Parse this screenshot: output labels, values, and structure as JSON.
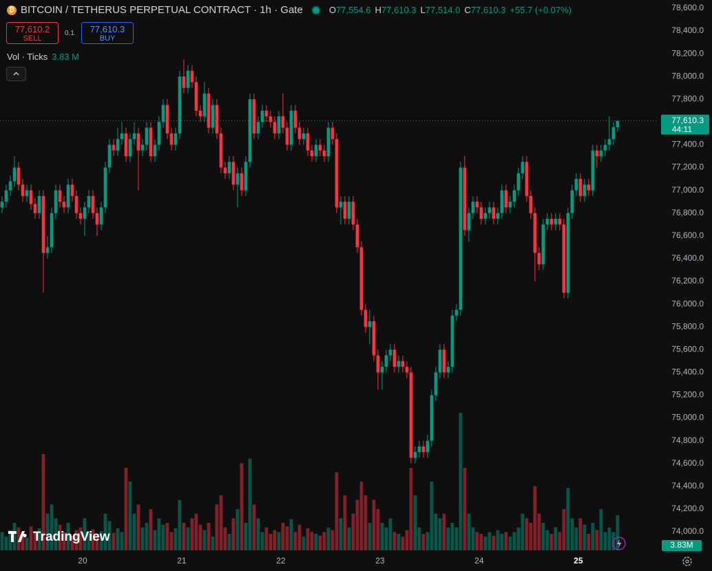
{
  "chart_data": {
    "type": "candlestick",
    "title": "BITCOIN / TETHERUS PERPETUAL CONTRACT · 1h · Gate",
    "legend_ohlc": [
      {
        "name": "O",
        "value": 77554.6,
        "label": "77,554.6"
      },
      {
        "name": "H",
        "value": 77610.3,
        "label": "77,610.3"
      },
      {
        "name": "L",
        "value": 77514.0,
        "label": "77,514.0"
      },
      {
        "name": "C",
        "value": 77610.3,
        "label": "77,610.3"
      }
    ],
    "change": "+55.7 (+0.07%)",
    "order_panel": {
      "sell_price": {
        "value": 77610.2,
        "label": "77,610.2"
      },
      "sell": "SELL",
      "spread": 0.1,
      "buy_price": {
        "value": 77610.3,
        "label": "77,610.3"
      },
      "buy": "BUY"
    },
    "volume_legend": {
      "name": "Vol · Ticks",
      "label": "3.83 M"
    },
    "up_color": "#089981",
    "down_color": "#f23645",
    "open": [
      76850,
      76900,
      77000,
      77080,
      77200,
      77050,
      76950,
      77000,
      76880,
      76800,
      76950,
      76450,
      76500,
      76800,
      77000,
      76900,
      76850,
      77050,
      76950,
      76800,
      76750,
      76850,
      76950,
      76800,
      76700,
      76850,
      77200,
      77400,
      77350,
      77450,
      77500,
      77300,
      77450,
      77500,
      77350,
      77400,
      77550,
      77300,
      77400,
      77600,
      77750,
      77500,
      77400,
      77500,
      78000,
      77900,
      78050,
      77950,
      77700,
      77650,
      77850,
      77550,
      77750,
      77500,
      77200,
      77150,
      77250,
      77050,
      77150,
      77000,
      77250,
      77800,
      77500,
      77600,
      77700,
      77650,
      77600,
      77500,
      77650,
      77550,
      77400,
      77700,
      77550,
      77450,
      77500,
      77350,
      77300,
      77400,
      77350,
      77300,
      77550,
      77450,
      76850,
      76900,
      76750,
      76900,
      76700,
      76500,
      75950,
      75800,
      75850,
      75550,
      75400,
      75450,
      75550,
      75600,
      75450,
      75500,
      75450,
      75400,
      74650,
      74700,
      74750,
      74700,
      74800,
      75200,
      75400,
      75600,
      75400,
      75450,
      75900,
      75950,
      77200,
      76650,
      76800,
      76900,
      76850,
      76750,
      76800,
      76850,
      76750,
      76800,
      77000,
      76850,
      76900,
      77000,
      77150,
      77250,
      76950,
      76800,
      76450,
      76350,
      76700,
      76750,
      76700,
      76750,
      76700,
      76100,
      76800,
      77000,
      77100,
      76950,
      77050,
      77000,
      77350,
      77300,
      77350,
      77400,
      77450,
      77554.6
    ],
    "high": [
      76950,
      77050,
      77130,
      77300,
      77250,
      77100,
      77050,
      77050,
      76930,
      77000,
      77000,
      76600,
      76850,
      77050,
      77050,
      76950,
      77100,
      77100,
      77000,
      76850,
      76900,
      77000,
      77000,
      76850,
      76900,
      77250,
      77450,
      77450,
      77550,
      77600,
      77550,
      77500,
      77600,
      77550,
      77450,
      77600,
      77600,
      77450,
      77650,
      77800,
      77800,
      77550,
      77550,
      78050,
      78150,
      78100,
      78100,
      78000,
      77750,
      77950,
      77900,
      77800,
      77800,
      77550,
      77250,
      77300,
      77300,
      77200,
      77200,
      77300,
      77850,
      77850,
      77650,
      77750,
      77750,
      77700,
      77650,
      77700,
      77850,
      77600,
      77750,
      77750,
      77600,
      77550,
      77550,
      77400,
      77450,
      77450,
      77400,
      77600,
      77600,
      77500,
      76950,
      76950,
      76950,
      76950,
      76750,
      76550,
      76000,
      75950,
      75900,
      75600,
      75500,
      75600,
      75650,
      75650,
      75550,
      75550,
      75500,
      75450,
      74750,
      74800,
      74800,
      74850,
      75250,
      75450,
      75650,
      75650,
      75500,
      75950,
      76000,
      77250,
      77300,
      76850,
      76950,
      76950,
      76900,
      76850,
      76900,
      76900,
      76850,
      77050,
      77050,
      76950,
      77050,
      77200,
      77300,
      77300,
      77000,
      76850,
      76500,
      76750,
      76800,
      76800,
      76800,
      76800,
      76750,
      76850,
      77050,
      77150,
      77150,
      77100,
      77100,
      77400,
      77400,
      77400,
      77450,
      77650,
      77600,
      77610.3
    ],
    "low": [
      76800,
      76850,
      76950,
      77030,
      77000,
      76900,
      76900,
      76830,
      76750,
      76750,
      76100,
      76400,
      76450,
      76750,
      76850,
      76800,
      76800,
      76900,
      76750,
      76700,
      76600,
      76800,
      76750,
      76600,
      76650,
      76800,
      77150,
      77300,
      77300,
      77400,
      77250,
      77250,
      77400,
      77000,
      77300,
      77350,
      77250,
      77250,
      77350,
      77550,
      77450,
      77350,
      77350,
      77450,
      77850,
      77850,
      77900,
      77650,
      77600,
      77600,
      77500,
      77500,
      77450,
      77150,
      77100,
      77100,
      77000,
      76850,
      76950,
      76950,
      77200,
      77450,
      77450,
      77550,
      77600,
      77550,
      77450,
      77450,
      77500,
      77350,
      77350,
      77500,
      77400,
      77400,
      77300,
      77250,
      77250,
      77300,
      77250,
      77250,
      77400,
      76800,
      76700,
      76700,
      76700,
      76650,
      76450,
      75900,
      75750,
      75650,
      75500,
      75250,
      75250,
      75400,
      75500,
      75400,
      75400,
      75400,
      75350,
      74600,
      74600,
      74650,
      74650,
      74650,
      74750,
      75150,
      75350,
      75350,
      75350,
      75400,
      75850,
      75900,
      76600,
      76550,
      76750,
      76800,
      76700,
      76700,
      76750,
      76700,
      76700,
      76750,
      76800,
      76800,
      76850,
      76950,
      77100,
      76900,
      76750,
      76200,
      76300,
      76300,
      76650,
      76650,
      76650,
      76650,
      76050,
      76050,
      76750,
      76950,
      76900,
      76900,
      76950,
      76950,
      77200,
      77250,
      77300,
      77350,
      77400,
      77514.0
    ],
    "close": [
      76900,
      77000,
      77080,
      77200,
      77050,
      76950,
      77000,
      76880,
      76800,
      76950,
      76450,
      76500,
      76800,
      77000,
      76900,
      76850,
      77050,
      76950,
      76800,
      76750,
      76850,
      76950,
      76800,
      76700,
      76850,
      77200,
      77400,
      77350,
      77450,
      77500,
      77300,
      77450,
      77500,
      77350,
      77400,
      77550,
      77300,
      77400,
      77600,
      77750,
      77500,
      77400,
      77500,
      78000,
      77900,
      78050,
      77950,
      77700,
      77650,
      77850,
      77550,
      77750,
      77500,
      77200,
      77150,
      77250,
      77050,
      77150,
      77000,
      77250,
      77800,
      77500,
      77600,
      77700,
      77650,
      77600,
      77500,
      77650,
      77550,
      77400,
      77700,
      77550,
      77450,
      77500,
      77350,
      77300,
      77400,
      77350,
      77300,
      77550,
      77450,
      76850,
      76900,
      76750,
      76900,
      76700,
      76500,
      75950,
      75800,
      75850,
      75550,
      75400,
      75450,
      75550,
      75600,
      75450,
      75500,
      75450,
      75400,
      74650,
      74700,
      74750,
      74700,
      74800,
      75200,
      75400,
      75600,
      75400,
      75450,
      75900,
      75950,
      77200,
      76650,
      76800,
      76900,
      76850,
      76750,
      76800,
      76850,
      76750,
      76800,
      77000,
      76850,
      76900,
      77000,
      77150,
      77250,
      76950,
      76800,
      76450,
      76350,
      76700,
      76750,
      76700,
      76750,
      76700,
      76100,
      76800,
      77000,
      77100,
      76950,
      77050,
      77000,
      77350,
      77300,
      77350,
      77400,
      77450,
      77554.6,
      77610.3
    ],
    "volume": [
      2.0,
      1.5,
      2.2,
      3.0,
      2.5,
      1.8,
      1.4,
      2.6,
      2.0,
      2.4,
      10.5,
      4.0,
      5.0,
      3.5,
      2.8,
      2.0,
      3.0,
      1.6,
      2.2,
      2.5,
      3.5,
      2.0,
      2.3,
      1.8,
      2.1,
      4.0,
      3.2,
      1.9,
      2.4,
      2.0,
      9.0,
      7.5,
      4.0,
      5.0,
      2.5,
      3.0,
      4.5,
      2.2,
      3.5,
      2.8,
      3.0,
      2.0,
      2.4,
      5.5,
      3.0,
      2.5,
      3.5,
      4.0,
      2.8,
      2.2,
      3.0,
      1.5,
      5.0,
      6.0,
      2.5,
      1.8,
      3.5,
      4.5,
      9.5,
      3.0,
      10.0,
      5.0,
      3.5,
      2.0,
      2.5,
      1.8,
      2.2,
      2.0,
      3.0,
      2.6,
      3.4,
      2.0,
      2.8,
      1.5,
      2.4,
      2.0,
      1.8,
      1.6,
      2.0,
      2.5,
      2.2,
      8.5,
      3.5,
      6.0,
      2.5,
      4.0,
      5.5,
      7.5,
      6.0,
      3.0,
      5.5,
      4.5,
      3.0,
      2.5,
      3.5,
      2.0,
      1.8,
      1.5,
      2.2,
      9.0,
      6.0,
      2.5,
      1.8,
      2.0,
      7.5,
      4.0,
      3.5,
      4.0,
      2.5,
      3.0,
      2.5,
      15.0,
      9.0,
      4.0,
      2.5,
      2.0,
      1.8,
      1.5,
      2.0,
      1.6,
      2.2,
      1.8,
      2.0,
      1.5,
      2.0,
      2.5,
      4.0,
      3.5,
      3.0,
      7.0,
      4.0,
      3.0,
      2.2,
      1.8,
      2.5,
      2.0,
      4.5,
      6.8,
      3.5,
      2.5,
      3.5,
      2.8,
      1.8,
      3.0,
      2.2,
      4.5,
      2.0,
      2.5,
      2.0,
      3.83
    ],
    "volume_last_label": "3.83M",
    "vol_lim": [
      0,
      60
    ],
    "ylim": [
      73837,
      78672
    ],
    "yticks": [
      {
        "value": 78600,
        "label": "78,600.0"
      },
      {
        "value": 78400,
        "label": "78,400.0"
      },
      {
        "value": 78200,
        "label": "78,200.0"
      },
      {
        "value": 78000,
        "label": "78,000.0"
      },
      {
        "value": 77800,
        "label": "77,800.0"
      },
      {
        "value": 77400,
        "label": "77,400.0"
      },
      {
        "value": 77200,
        "label": "77,200.0"
      },
      {
        "value": 77000,
        "label": "77,000.0"
      },
      {
        "value": 76800,
        "label": "76,800.0"
      },
      {
        "value": 76600,
        "label": "76,600.0"
      },
      {
        "value": 76400,
        "label": "76,400.0"
      },
      {
        "value": 76200,
        "label": "76,200.0"
      },
      {
        "value": 76000,
        "label": "76,000.0"
      },
      {
        "value": 75800,
        "label": "75,800.0"
      },
      {
        "value": 75600,
        "label": "75,600.0"
      },
      {
        "value": 75400,
        "label": "75,400.0"
      },
      {
        "value": 75200,
        "label": "75,200.0"
      },
      {
        "value": 75000,
        "label": "75,000.0"
      },
      {
        "value": 74800,
        "label": "74,800.0"
      },
      {
        "value": 74600,
        "label": "74,600.0"
      },
      {
        "value": 74400,
        "label": "74,400.0"
      },
      {
        "value": 74200,
        "label": "74,200.0"
      },
      {
        "value": 74000,
        "label": "74,000.0"
      }
    ],
    "xlim": [
      -0.5,
      158.7
    ],
    "xticks": [
      {
        "value": 19.5,
        "label": "20"
      },
      {
        "value": 43.5,
        "label": "21"
      },
      {
        "value": 67.5,
        "label": "22"
      },
      {
        "value": 91.5,
        "label": "23"
      },
      {
        "value": 115.5,
        "label": "24"
      },
      {
        "value": 139.5,
        "label": "25"
      }
    ],
    "last_price": {
      "value": 77610.3,
      "label": "77,610.3"
    },
    "countdown": "44:11",
    "watermark": "TradingView"
  }
}
